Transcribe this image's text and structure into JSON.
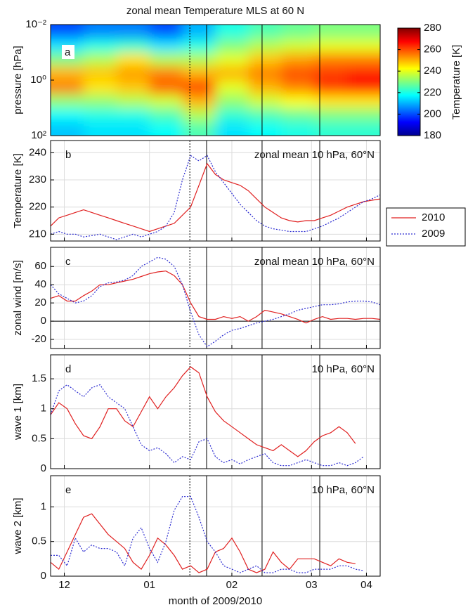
{
  "chart_data": [
    {
      "type": "heatmap",
      "title": "zonal mean Temperature MLS at 60 N",
      "panel_label": "a",
      "ylabel": "pressure [hPa]",
      "x": [
        6,
        18,
        30,
        42,
        54,
        66,
        78,
        90,
        102,
        114
      ],
      "y": [
        0.018,
        0.056,
        0.18,
        0.56,
        1.8,
        5.6,
        18,
        56
      ],
      "z": [
        [
          200,
          205,
          205,
          200,
          210,
          220,
          225,
          228,
          230,
          230
        ],
        [
          215,
          220,
          222,
          215,
          220,
          230,
          235,
          238,
          240,
          240
        ],
        [
          230,
          235,
          245,
          235,
          235,
          240,
          248,
          252,
          255,
          255
        ],
        [
          250,
          248,
          252,
          255,
          250,
          250,
          255,
          260,
          262,
          265
        ],
        [
          255,
          245,
          248,
          258,
          262,
          240,
          250,
          255,
          262,
          265
        ],
        [
          232,
          232,
          235,
          238,
          250,
          232,
          238,
          242,
          245,
          245
        ],
        [
          218,
          220,
          220,
          225,
          235,
          222,
          225,
          228,
          230,
          230
        ],
        [
          212,
          215,
          215,
          218,
          225,
          215,
          218,
          220,
          222,
          222
        ]
      ],
      "xlim": [
        0,
        120
      ],
      "ylim": [
        100,
        0.01
      ],
      "ylog": true,
      "yticks": [
        {
          "value": 0.01,
          "label": "10⁻²"
        },
        {
          "value": 1,
          "label": "10⁰"
        },
        {
          "value": 100,
          "label": "10²"
        }
      ],
      "colormap": "jet",
      "zlim": [
        180,
        280
      ],
      "zticks": [
        180,
        200,
        220,
        240,
        260,
        280
      ],
      "colorbar_label": "Temperature [K]",
      "vlines": [
        50.7,
        56.8,
        77,
        98
      ],
      "vline_styles": [
        "dotted",
        "solid",
        "solid",
        "solid"
      ]
    },
    {
      "type": "line",
      "panel_label": "b",
      "annotation": "zonal mean 10 hPa, 60°N",
      "ylabel": "Temperature [K]",
      "legend": "outside-right",
      "x": [
        0,
        3,
        6,
        9,
        12,
        15,
        18,
        21,
        24,
        27,
        30,
        33,
        36,
        39,
        42,
        45,
        48,
        51,
        54,
        57,
        60,
        63,
        66,
        69,
        72,
        75,
        78,
        81,
        84,
        87,
        90,
        93,
        96,
        99,
        102,
        105,
        108,
        111,
        114,
        117,
        120
      ],
      "series": [
        {
          "name": "2010",
          "color": "#e02020",
          "linestyle": "solid",
          "values": [
            213,
            216,
            217,
            218,
            219,
            218,
            217,
            216,
            215,
            214,
            213,
            212,
            211,
            212,
            213,
            214,
            217,
            220,
            228,
            236,
            232,
            230,
            229,
            228,
            226,
            223,
            220,
            218,
            216,
            215,
            214.5,
            215,
            215,
            216,
            217,
            218.5,
            220,
            221,
            222,
            222.5,
            223
          ]
        },
        {
          "name": "2009",
          "color": "#2a2ad0",
          "linestyle": "dotted",
          "values": [
            210,
            211,
            210,
            210,
            209,
            209.5,
            210,
            209,
            208,
            209,
            210,
            209,
            210,
            211,
            213,
            218,
            230,
            239,
            237,
            239,
            233,
            229,
            225,
            221,
            218,
            215,
            213,
            212,
            211.5,
            211,
            211,
            211,
            212,
            213,
            214.5,
            216,
            218,
            220,
            222,
            223,
            224.5
          ]
        }
      ],
      "xlim": [
        0,
        120
      ],
      "xticks": [
        5,
        36,
        66,
        95,
        115
      ],
      "ylim": [
        207.5,
        244.5
      ],
      "yticks": [
        210,
        220,
        230,
        240
      ],
      "grid": true,
      "vlines": [
        50.7,
        56.8,
        77,
        98
      ],
      "vline_styles": [
        "dotted",
        "solid",
        "solid",
        "solid"
      ]
    },
    {
      "type": "line",
      "panel_label": "c",
      "annotation": "zonal mean 10 hPa, 60°N",
      "ylabel": "zonal wind [m/s]",
      "zero_line": true,
      "x": [
        0,
        3,
        6,
        9,
        12,
        15,
        18,
        21,
        24,
        27,
        30,
        33,
        36,
        39,
        42,
        45,
        48,
        51,
        54,
        57,
        60,
        63,
        66,
        69,
        72,
        75,
        78,
        81,
        84,
        87,
        90,
        93,
        96,
        99,
        102,
        105,
        108,
        111,
        114,
        117,
        120
      ],
      "series": [
        {
          "name": "2010",
          "color": "#e02020",
          "linestyle": "solid",
          "values": [
            25,
            28,
            22,
            22,
            28,
            33,
            40,
            40,
            42,
            44,
            46,
            49,
            52,
            54,
            55,
            50,
            40,
            20,
            5,
            2,
            2,
            5,
            3,
            5,
            0,
            5,
            12,
            10,
            8,
            5,
            2,
            -2,
            2,
            5,
            2,
            3,
            3,
            2,
            3,
            3,
            2
          ]
        },
        {
          "name": "2009",
          "color": "#2a2ad0",
          "linestyle": "dotted",
          "values": [
            40,
            30,
            25,
            20,
            22,
            28,
            38,
            42,
            43,
            45,
            50,
            60,
            65,
            70,
            68,
            60,
            40,
            10,
            -15,
            -28,
            -22,
            -15,
            -10,
            -8,
            -5,
            -2,
            0,
            2,
            5,
            8,
            12,
            14,
            16,
            18,
            18,
            19,
            21,
            22,
            22,
            21,
            18
          ]
        }
      ],
      "xlim": [
        0,
        120
      ],
      "xticks": [
        5,
        36,
        66,
        95,
        115
      ],
      "ylim": [
        -30,
        81
      ],
      "yticks": [
        -20,
        0,
        20,
        40,
        60
      ],
      "grid": true,
      "vlines": [
        50.7,
        56.8,
        77,
        98
      ],
      "vline_styles": [
        "dotted",
        "solid",
        "solid",
        "solid"
      ]
    },
    {
      "type": "line",
      "panel_label": "d",
      "annotation": "10 hPa, 60°N",
      "ylabel": "wave 1 [km]",
      "x": [
        0,
        3,
        6,
        9,
        12,
        15,
        18,
        21,
        24,
        27,
        30,
        33,
        36,
        39,
        42,
        45,
        48,
        51,
        54,
        57,
        60,
        63,
        66,
        69,
        72,
        75,
        78,
        81,
        84,
        87,
        90,
        93,
        96,
        99,
        102,
        105,
        108,
        111,
        114,
        117,
        120
      ],
      "series": [
        {
          "name": "2010",
          "color": "#e02020",
          "linestyle": "solid",
          "values": [
            0.9,
            1.1,
            1.0,
            0.75,
            0.55,
            0.5,
            0.7,
            1.0,
            1.0,
            0.8,
            0.7,
            0.95,
            1.2,
            1.0,
            1.2,
            1.35,
            1.55,
            1.7,
            1.6,
            1.2,
            0.95,
            0.8,
            0.7,
            0.6,
            0.5,
            0.4,
            0.35,
            0.3,
            0.4,
            0.3,
            0.2,
            0.3,
            0.45,
            0.55,
            0.6,
            0.7,
            0.6,
            0.42,
            null,
            null,
            null
          ]
        },
        {
          "name": "2009",
          "color": "#2a2ad0",
          "linestyle": "dotted",
          "values": [
            0.9,
            1.3,
            1.4,
            1.3,
            1.2,
            1.35,
            1.4,
            1.2,
            1.1,
            1.0,
            0.7,
            0.4,
            0.3,
            0.35,
            0.25,
            0.1,
            0.2,
            0.15,
            0.45,
            0.5,
            0.2,
            0.1,
            0.15,
            0.08,
            0.15,
            0.2,
            0.25,
            0.1,
            0.05,
            0.05,
            0.1,
            0.15,
            0.1,
            0.05,
            0.05,
            0.1,
            0.05,
            0.1,
            0.2,
            null,
            null
          ]
        }
      ],
      "xlim": [
        0,
        120
      ],
      "xticks": [
        5,
        36,
        66,
        95,
        115
      ],
      "ylim": [
        0,
        1.9
      ],
      "yticks": [
        0,
        0.5,
        1,
        1.5
      ],
      "grid": true,
      "vlines": [
        50.7,
        56.8,
        77,
        98
      ],
      "vline_styles": [
        "dotted",
        "solid",
        "solid",
        "solid"
      ]
    },
    {
      "type": "line",
      "panel_label": "e",
      "annotation": "10 hPa, 60°N",
      "ylabel": "wave 2 [km]",
      "xlabel": "month of 2009/2010",
      "x": [
        0,
        3,
        6,
        9,
        12,
        15,
        18,
        21,
        24,
        27,
        30,
        33,
        36,
        39,
        42,
        45,
        48,
        51,
        54,
        57,
        60,
        63,
        66,
        69,
        72,
        75,
        78,
        81,
        84,
        87,
        90,
        93,
        96,
        99,
        102,
        105,
        108,
        111,
        114,
        117,
        120
      ],
      "series": [
        {
          "name": "2010",
          "color": "#e02020",
          "linestyle": "solid",
          "values": [
            0.2,
            0.1,
            0.35,
            0.6,
            0.85,
            0.9,
            0.75,
            0.6,
            0.5,
            0.4,
            0.2,
            0.1,
            0.3,
            0.55,
            0.45,
            0.3,
            0.1,
            0.15,
            0.05,
            0.1,
            0.35,
            0.4,
            0.55,
            0.35,
            0.1,
            0.05,
            0.1,
            0.35,
            0.2,
            0.1,
            0.25,
            0.25,
            0.25,
            0.2,
            0.15,
            0.25,
            0.2,
            0.18,
            null,
            null,
            null
          ]
        },
        {
          "name": "2009",
          "color": "#2a2ad0",
          "linestyle": "dotted",
          "values": [
            0.3,
            0.3,
            0.15,
            0.55,
            0.35,
            0.45,
            0.4,
            0.4,
            0.35,
            0.15,
            0.55,
            0.7,
            0.4,
            0.2,
            0.5,
            0.95,
            1.15,
            1.15,
            0.85,
            0.5,
            0.35,
            0.15,
            0.1,
            0.05,
            0.1,
            0.15,
            0.05,
            0.05,
            0.1,
            0.1,
            0.05,
            0.05,
            0.1,
            0.1,
            0.1,
            0.15,
            0.15,
            0.1,
            0.08,
            null,
            null
          ]
        }
      ],
      "xlim": [
        0,
        120
      ],
      "xticks": [
        {
          "value": 5,
          "label": "12"
        },
        {
          "value": 36,
          "label": "01"
        },
        {
          "value": 66,
          "label": "02"
        },
        {
          "value": 95,
          "label": "03"
        },
        {
          "value": 115,
          "label": "04"
        }
      ],
      "ylim": [
        0,
        1.45
      ],
      "yticks": [
        0,
        0.5,
        1
      ],
      "grid": true,
      "vlines": [
        50.7,
        56.8,
        77,
        98
      ],
      "vline_styles": [
        "dotted",
        "solid",
        "solid",
        "solid"
      ]
    }
  ]
}
